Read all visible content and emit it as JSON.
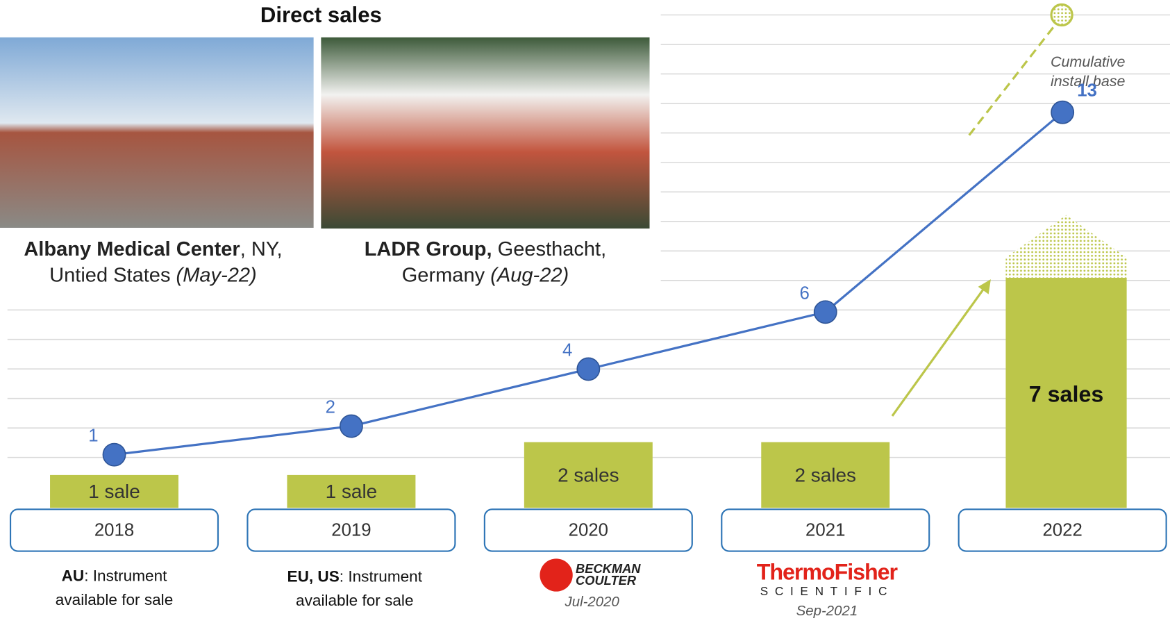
{
  "chart_data": {
    "type": "bar_line",
    "categories": [
      "2018",
      "2019",
      "2020",
      "2021",
      "2022"
    ],
    "bars": {
      "values": [
        1,
        1,
        2,
        2,
        7
      ],
      "value_labels": [
        "1 sale",
        "1 sale",
        "2 sales",
        "2 sales",
        "7 sales"
      ],
      "color": "#bcc64a"
    },
    "line": {
      "values": [
        1,
        2,
        4,
        6,
        13
      ],
      "color": "#4472c4"
    },
    "annotation": [
      "Cumulative",
      "install base"
    ],
    "notes": [
      {
        "bold": "AU",
        "text": ": Instrument available for sale"
      },
      {
        "bold": "EU, US",
        "text": ": Instrument available for sale"
      }
    ],
    "partners": [
      {
        "name": "BECKMAN COULTER",
        "date": "Jul-2020"
      },
      {
        "name": "ThermoFisher",
        "sub": "SCIENTIFIC",
        "date": "Sep-2021"
      }
    ]
  },
  "photos": {
    "title": "Direct sales",
    "items": [
      {
        "name": "Albany Medical Center",
        "place": ", NY, Untied States",
        "date": "(May-22)"
      },
      {
        "name": "LADR Group,",
        "place": " Geesthacht, Germany",
        "date": "(Aug-22)"
      }
    ]
  }
}
